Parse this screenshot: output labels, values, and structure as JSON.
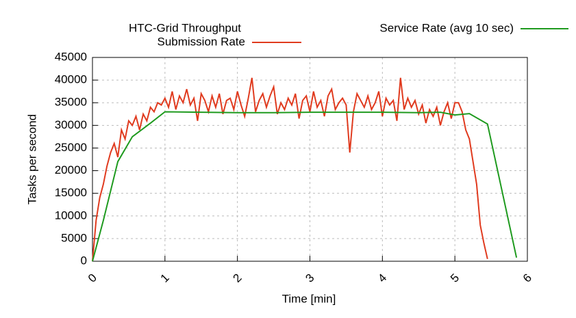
{
  "chart_data": {
    "type": "line",
    "legend_title": "HTC-Grid Throughput",
    "xlabel": "Time [min]",
    "ylabel": "Tasks per second",
    "xlim": [
      0,
      6
    ],
    "xticks": [
      0,
      1,
      2,
      3,
      4,
      5,
      6
    ],
    "ylim": [
      0,
      45000
    ],
    "yticks": [
      0,
      5000,
      10000,
      15000,
      20000,
      25000,
      30000,
      35000,
      40000,
      45000
    ],
    "grid": true,
    "series": [
      {
        "name": "Submission Rate",
        "color": "#e03a1e",
        "x": [
          0,
          0.05,
          0.1,
          0.15,
          0.2,
          0.25,
          0.3,
          0.35,
          0.4,
          0.45,
          0.5,
          0.55,
          0.6,
          0.65,
          0.7,
          0.75,
          0.8,
          0.85,
          0.9,
          0.95,
          1,
          1.05,
          1.1,
          1.15,
          1.2,
          1.25,
          1.3,
          1.35,
          1.4,
          1.45,
          1.5,
          1.55,
          1.6,
          1.65,
          1.7,
          1.75,
          1.8,
          1.85,
          1.9,
          1.95,
          2,
          2.05,
          2.1,
          2.15,
          2.2,
          2.25,
          2.3,
          2.35,
          2.4,
          2.45,
          2.5,
          2.55,
          2.6,
          2.65,
          2.7,
          2.75,
          2.8,
          2.85,
          2.9,
          2.95,
          3,
          3.05,
          3.1,
          3.15,
          3.2,
          3.25,
          3.3,
          3.35,
          3.4,
          3.45,
          3.5,
          3.55,
          3.6,
          3.65,
          3.7,
          3.75,
          3.8,
          3.85,
          3.9,
          3.95,
          4,
          4.05,
          4.1,
          4.15,
          4.2,
          4.25,
          4.3,
          4.35,
          4.4,
          4.45,
          4.5,
          4.55,
          4.6,
          4.65,
          4.7,
          4.75,
          4.8,
          4.85,
          4.9,
          4.95,
          5,
          5.05,
          5.1,
          5.15,
          5.2,
          5.25,
          5.3,
          5.35,
          5.4,
          5.45
        ],
        "values": [
          0,
          9000,
          14000,
          17000,
          21000,
          24000,
          26000,
          23000,
          29000,
          27000,
          31000,
          30000,
          32000,
          29000,
          32500,
          31000,
          34000,
          33000,
          35000,
          34500,
          36000,
          34000,
          37500,
          33500,
          36500,
          35000,
          38000,
          34500,
          36000,
          31000,
          37000,
          35500,
          33000,
          36500,
          34000,
          37000,
          32500,
          35500,
          36000,
          33500,
          37500,
          34500,
          32000,
          36000,
          40500,
          33000,
          35500,
          37000,
          34000,
          36500,
          38500,
          32500,
          35000,
          33500,
          36000,
          34500,
          37000,
          31500,
          35500,
          36500,
          33000,
          37500,
          34000,
          35500,
          32000,
          36500,
          38000,
          33500,
          35000,
          36000,
          34500,
          24000,
          33000,
          37000,
          35500,
          34000,
          36500,
          33500,
          35000,
          37500,
          32000,
          36000,
          34500,
          35500,
          31000,
          40500,
          33500,
          36000,
          34000,
          35500,
          32500,
          34500,
          30500,
          33500,
          32000,
          34000,
          30000,
          33000,
          35000,
          31500,
          35000,
          35000,
          33000,
          29000,
          27000,
          22000,
          17000,
          8000,
          4000,
          500
        ]
      },
      {
        "name": "Service Rate (avg 10 sec)",
        "color": "#1e9a1e",
        "x": [
          0,
          0.15,
          0.35,
          0.55,
          0.8,
          1,
          1.5,
          2,
          2.5,
          3,
          3.5,
          4,
          4.5,
          4.8,
          5,
          5.2,
          5.45,
          5.85
        ],
        "values": [
          0,
          9000,
          22000,
          27500,
          30500,
          33000,
          32900,
          32800,
          32800,
          32900,
          32900,
          32900,
          32800,
          32900,
          32300,
          32600,
          30300,
          800
        ]
      }
    ]
  }
}
